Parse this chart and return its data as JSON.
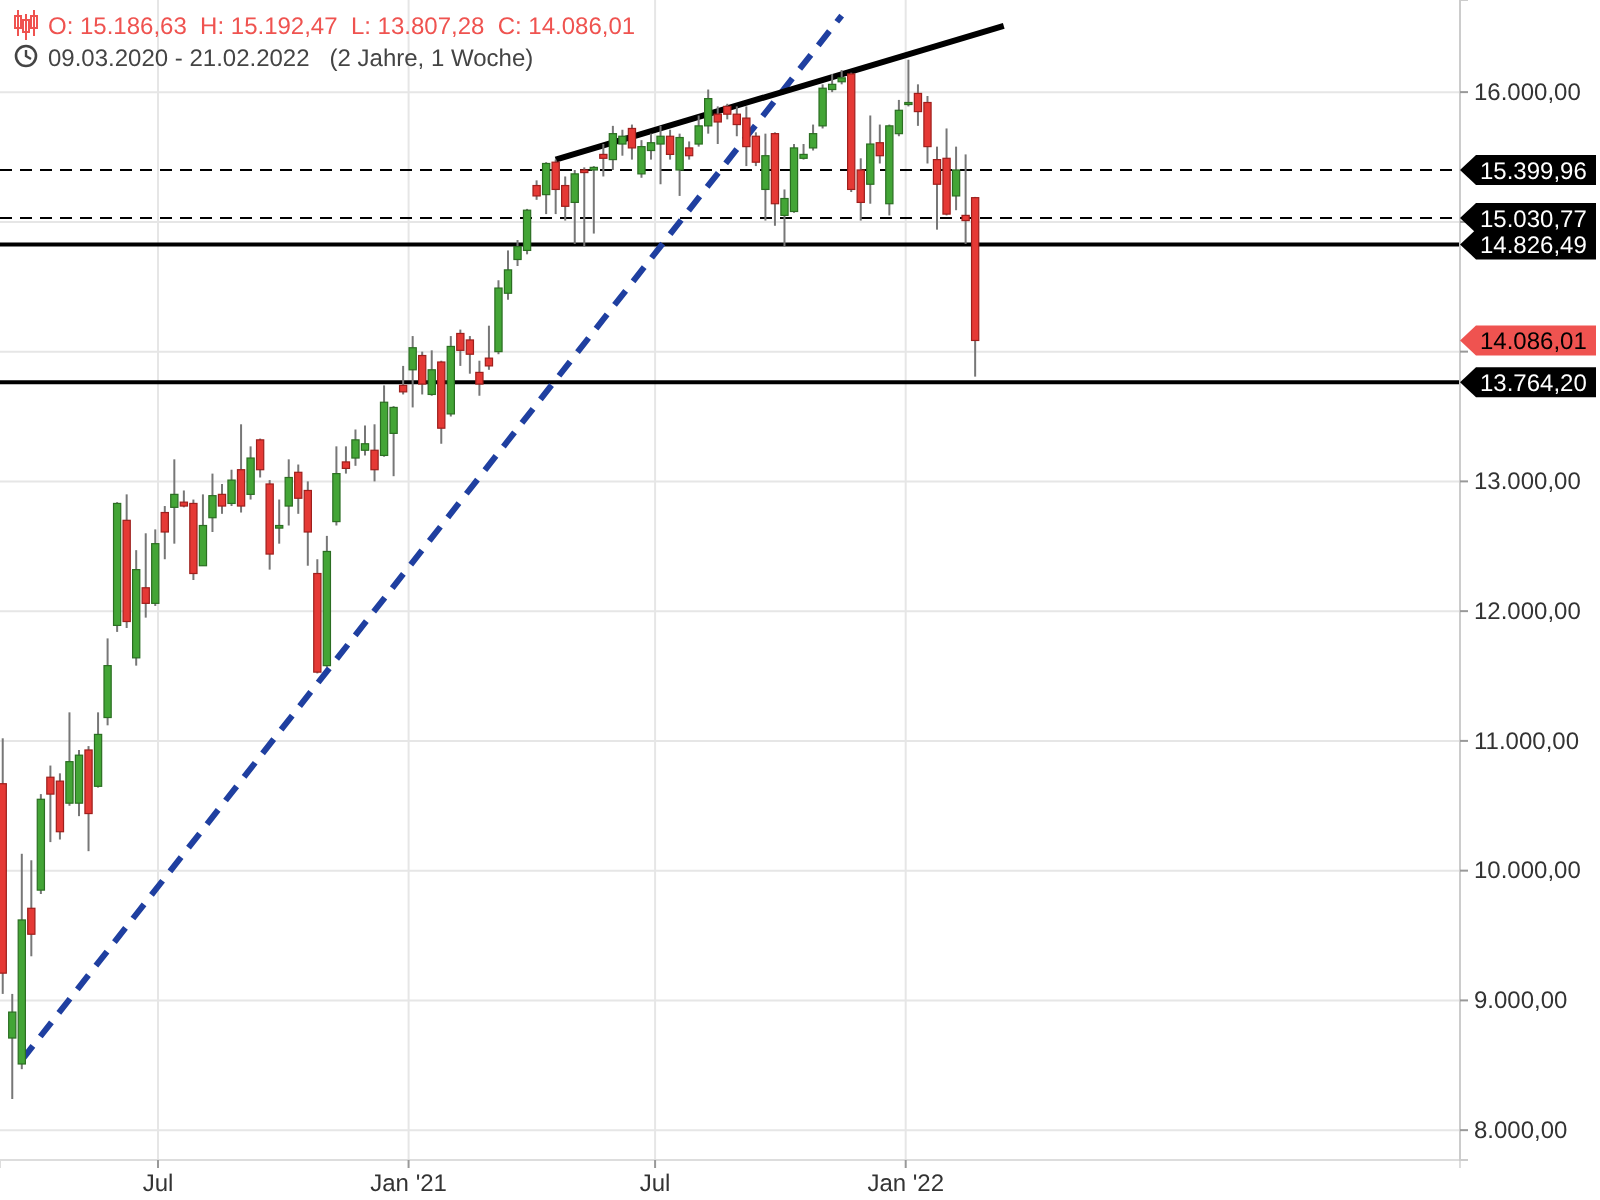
{
  "chart_data": {
    "type": "candlestick",
    "title": "O: 15.186,63  H: 15.192,47  L: 13.807,28  C: 14.086,01",
    "subtitle": "09.03.2020 - 21.02.2022   (2 Jahre, 1 Woche)",
    "x": [
      "2020-03-09",
      "2020-03-16",
      "2020-03-23",
      "2020-03-30",
      "2020-04-06",
      "2020-04-13",
      "2020-04-20",
      "2020-04-27",
      "2020-05-04",
      "2020-05-11",
      "2020-05-18",
      "2020-05-25",
      "2020-06-01",
      "2020-06-08",
      "2020-06-15",
      "2020-06-22",
      "2020-06-29",
      "2020-07-06",
      "2020-07-13",
      "2020-07-20",
      "2020-07-27",
      "2020-08-03",
      "2020-08-10",
      "2020-08-17",
      "2020-08-24",
      "2020-08-31",
      "2020-09-07",
      "2020-09-14",
      "2020-09-21",
      "2020-09-28",
      "2020-10-05",
      "2020-10-12",
      "2020-10-19",
      "2020-10-26",
      "2020-11-02",
      "2020-11-09",
      "2020-11-16",
      "2020-11-23",
      "2020-11-30",
      "2020-12-07",
      "2020-12-14",
      "2020-12-21",
      "2020-12-28",
      "2021-01-04",
      "2021-01-11",
      "2021-01-18",
      "2021-01-25",
      "2021-02-01",
      "2021-02-08",
      "2021-02-15",
      "2021-02-22",
      "2021-03-01",
      "2021-03-08",
      "2021-03-15",
      "2021-03-22",
      "2021-03-29",
      "2021-04-05",
      "2021-04-12",
      "2021-04-19",
      "2021-04-26",
      "2021-05-03",
      "2021-05-10",
      "2021-05-17",
      "2021-05-24",
      "2021-05-31",
      "2021-06-07",
      "2021-06-14",
      "2021-06-21",
      "2021-06-28",
      "2021-07-05",
      "2021-07-12",
      "2021-07-19",
      "2021-07-26",
      "2021-08-02",
      "2021-08-09",
      "2021-08-16",
      "2021-08-23",
      "2021-08-30",
      "2021-09-06",
      "2021-09-13",
      "2021-09-20",
      "2021-09-27",
      "2021-10-04",
      "2021-10-11",
      "2021-10-18",
      "2021-10-25",
      "2021-11-01",
      "2021-11-08",
      "2021-11-15",
      "2021-11-22",
      "2021-11-29",
      "2021-12-06",
      "2021-12-13",
      "2021-12-20",
      "2021-12-27",
      "2022-01-03",
      "2022-01-10",
      "2022-01-17",
      "2022-01-24",
      "2022-01-31",
      "2022-02-07",
      "2022-02-14",
      "2022-02-21"
    ],
    "ohlc": [
      [
        10670,
        11020,
        9050,
        9210
      ],
      [
        8710,
        9050,
        8240,
        8910
      ],
      [
        8510,
        10130,
        8470,
        9620
      ],
      [
        9710,
        10080,
        9340,
        9510
      ],
      [
        9850,
        10590,
        9820,
        10550
      ],
      [
        10720,
        10810,
        10220,
        10590
      ],
      [
        10690,
        10750,
        10240,
        10300
      ],
      [
        10520,
        11220,
        10500,
        10840
      ],
      [
        10520,
        10930,
        10420,
        10890
      ],
      [
        10930,
        10960,
        10150,
        10440
      ],
      [
        10650,
        11220,
        10640,
        11050
      ],
      [
        11180,
        11790,
        11120,
        11580
      ],
      [
        11890,
        12840,
        11840,
        12830
      ],
      [
        12700,
        12900,
        11870,
        11920
      ],
      [
        11640,
        12470,
        11580,
        12320
      ],
      [
        12180,
        12600,
        11950,
        12060
      ],
      [
        12060,
        12630,
        12040,
        12520
      ],
      [
        12760,
        12810,
        12400,
        12610
      ],
      [
        12800,
        13170,
        12520,
        12900
      ],
      [
        12840,
        12930,
        12800,
        12810
      ],
      [
        12830,
        12860,
        12240,
        12290
      ],
      [
        12350,
        12900,
        12350,
        12660
      ],
      [
        12720,
        13060,
        12610,
        12890
      ],
      [
        12900,
        12980,
        12750,
        12810
      ],
      [
        12830,
        13090,
        12810,
        13010
      ],
      [
        13090,
        13440,
        12760,
        12810
      ],
      [
        12900,
        13270,
        12860,
        13180
      ],
      [
        13320,
        13330,
        13030,
        13090
      ],
      [
        12980,
        13010,
        12320,
        12440
      ],
      [
        12640,
        12860,
        12520,
        12660
      ],
      [
        12810,
        13170,
        12660,
        13030
      ],
      [
        13070,
        13130,
        12750,
        12870
      ],
      [
        12930,
        13000,
        12350,
        12610
      ],
      [
        12290,
        12400,
        11520,
        11530
      ],
      [
        11580,
        12580,
        11570,
        12460
      ],
      [
        12690,
        13270,
        12660,
        13060
      ],
      [
        13150,
        13270,
        13060,
        13100
      ],
      [
        13180,
        13400,
        13120,
        13320
      ],
      [
        13240,
        13430,
        13200,
        13290
      ],
      [
        13240,
        13440,
        13000,
        13090
      ],
      [
        13200,
        13740,
        13190,
        13610
      ],
      [
        13370,
        13580,
        13040,
        13570
      ],
      [
        13740,
        13890,
        13670,
        13690
      ],
      [
        13860,
        14120,
        13570,
        14030
      ],
      [
        13970,
        14000,
        13670,
        13750
      ],
      [
        13670,
        14010,
        13660,
        13860
      ],
      [
        13920,
        13930,
        13290,
        13410
      ],
      [
        13520,
        14120,
        13500,
        14040
      ],
      [
        14140,
        14170,
        13890,
        14010
      ],
      [
        14090,
        14120,
        13830,
        13980
      ],
      [
        13840,
        13930,
        13660,
        13750
      ],
      [
        13950,
        14200,
        13860,
        13890
      ],
      [
        14000,
        14550,
        13980,
        14490
      ],
      [
        14450,
        14780,
        14400,
        14630
      ],
      [
        14710,
        14860,
        14660,
        14810
      ],
      [
        14780,
        15100,
        14750,
        15090
      ],
      [
        15280,
        15320,
        15170,
        15200
      ],
      [
        15210,
        15460,
        15060,
        15450
      ],
      [
        15460,
        15480,
        15060,
        15250
      ],
      [
        15280,
        15350,
        15010,
        15120
      ],
      [
        15150,
        15400,
        14830,
        15370
      ],
      [
        15400,
        15420,
        14810,
        15380
      ],
      [
        15400,
        15430,
        14910,
        15420
      ],
      [
        15520,
        15600,
        15350,
        15490
      ],
      [
        15480,
        15740,
        15400,
        15680
      ],
      [
        15600,
        15710,
        15510,
        15660
      ],
      [
        15720,
        15750,
        15480,
        15570
      ],
      [
        15370,
        15630,
        15340,
        15580
      ],
      [
        15550,
        15680,
        15480,
        15610
      ],
      [
        15600,
        15740,
        15290,
        15660
      ],
      [
        15660,
        15710,
        15480,
        15520
      ],
      [
        15400,
        15680,
        15200,
        15650
      ],
      [
        15570,
        15620,
        15480,
        15510
      ],
      [
        15600,
        15820,
        15580,
        15740
      ],
      [
        15740,
        16020,
        15680,
        15950
      ],
      [
        15830,
        15890,
        15600,
        15770
      ],
      [
        15890,
        15910,
        15790,
        15830
      ],
      [
        15830,
        15890,
        15660,
        15750
      ],
      [
        15800,
        15890,
        15430,
        15580
      ],
      [
        15660,
        15690,
        15430,
        15460
      ],
      [
        15250,
        15680,
        15010,
        15510
      ],
      [
        15680,
        15690,
        14970,
        15140
      ],
      [
        15050,
        15250,
        14810,
        15180
      ],
      [
        15080,
        15600,
        15070,
        15570
      ],
      [
        15490,
        15600,
        15480,
        15520
      ],
      [
        15570,
        15750,
        15550,
        15680
      ],
      [
        15740,
        16060,
        15720,
        16030
      ],
      [
        16020,
        16140,
        16000,
        16060
      ],
      [
        16080,
        16170,
        16060,
        16110
      ],
      [
        16140,
        16150,
        15230,
        15250
      ],
      [
        15400,
        15490,
        15010,
        15150
      ],
      [
        15290,
        15820,
        15140,
        15600
      ],
      [
        15610,
        15750,
        15450,
        15510
      ],
      [
        15140,
        15750,
        15050,
        15740
      ],
      [
        15680,
        15940,
        15660,
        15860
      ],
      [
        15910,
        16250,
        15890,
        15920
      ],
      [
        15990,
        16060,
        15740,
        15850
      ],
      [
        15920,
        15970,
        15450,
        15580
      ],
      [
        15480,
        15580,
        14940,
        15290
      ],
      [
        15490,
        15720,
        15050,
        15060
      ],
      [
        15200,
        15580,
        15090,
        15400
      ],
      [
        15050,
        15520,
        14830,
        15010
      ],
      [
        15186.63,
        15192.47,
        13807.28,
        14086.01
      ]
    ],
    "series": [
      {
        "type": "line",
        "x": [
          "2020-03-23",
          "2021-11-15"
        ],
        "values": [
          8540,
          16590
        ],
        "color": "#1f3fa0",
        "line_style": "dashed"
      },
      {
        "type": "line",
        "x": [
          "2021-04-19",
          "2022-03-14"
        ],
        "values": [
          15480,
          16510
        ],
        "color": "#000000",
        "line_style": "solid"
      }
    ],
    "ref_lines": [
      {
        "axis": "y",
        "value": 15399.96,
        "label": "15.399,96",
        "color": "#000000",
        "line_style": "dashed"
      },
      {
        "axis": "y",
        "value": 15030.77,
        "label": "15.030,77",
        "color": "#000000",
        "line_style": "dashed"
      },
      {
        "axis": "y",
        "value": 14826.49,
        "label": "14.826,49",
        "color": "#000000",
        "line_style": "solid"
      },
      {
        "axis": "y",
        "value": 13764.2,
        "label": "13.764,20",
        "color": "#000000",
        "line_style": "solid"
      }
    ],
    "annotations": [
      "14.086,01"
    ],
    "xlim": [
      "2020-03-07",
      "2023-02-12"
    ],
    "xticks": [
      {
        "value": "2020-07-01",
        "label": "Jul"
      },
      {
        "value": "2021-01-01",
        "label": "Jan '21"
      },
      {
        "value": "2021-07-01",
        "label": "Jul"
      },
      {
        "value": "2022-01-01",
        "label": "Jan '22"
      }
    ],
    "ylim": [
      7770,
      16710
    ],
    "yticks": [
      {
        "value": 8000,
        "label": "8.000,00"
      },
      {
        "value": 9000,
        "label": "9.000,00"
      },
      {
        "value": 10000,
        "label": "10.000,00"
      },
      {
        "value": 11000,
        "label": "11.000,00"
      },
      {
        "value": 12000,
        "label": "12.000,00"
      },
      {
        "value": 13000,
        "label": "13.000,00"
      },
      {
        "value": 14000,
        "label": null
      },
      {
        "value": 15000,
        "label": null
      },
      {
        "value": 16000,
        "label": "16.000,00"
      }
    ],
    "grid": true
  }
}
